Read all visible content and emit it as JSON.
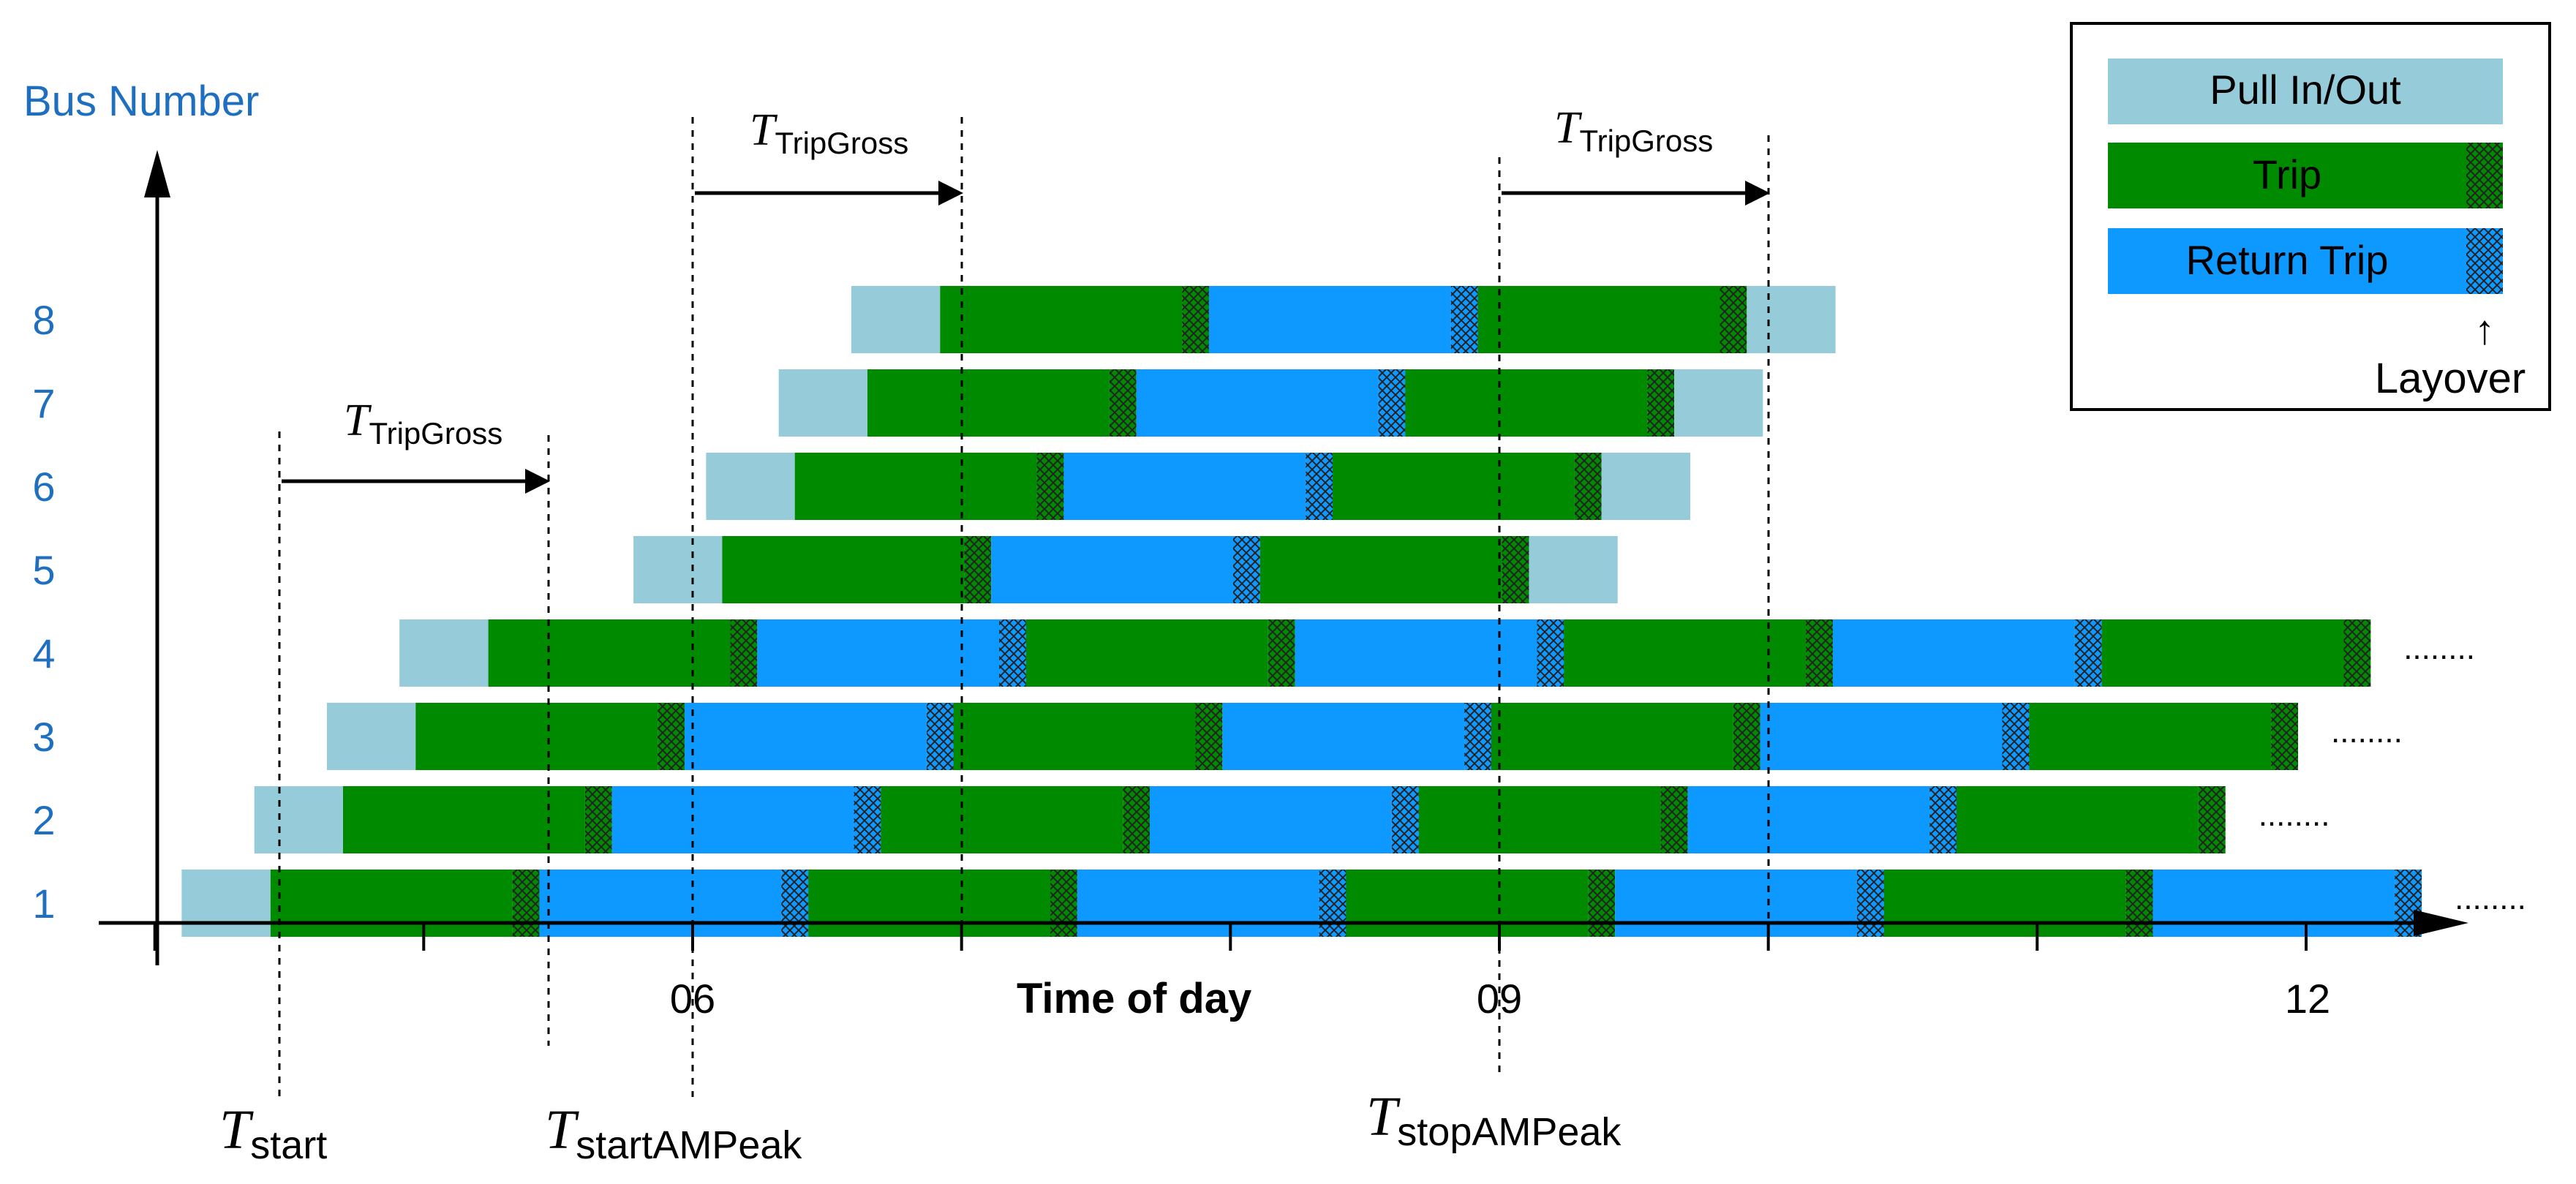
{
  "y_axis": {
    "label": "Bus Number",
    "ticks": [
      "1",
      "2",
      "3",
      "4",
      "5",
      "6",
      "7",
      "8"
    ]
  },
  "x_axis": {
    "label": "Time of day",
    "ticks": [
      "06",
      "09",
      "12"
    ]
  },
  "legend": {
    "items": [
      {
        "key": "pull",
        "label": "Pull In/Out"
      },
      {
        "key": "trip",
        "label": "Trip"
      },
      {
        "key": "return",
        "label": "Return Trip"
      }
    ],
    "note_arrow": "↑",
    "note": "Layover"
  },
  "colors": {
    "pull": "#96ccd9",
    "trip": "#008a00",
    "return": "#0d99ff",
    "axis_label": "#1f6fc1"
  },
  "time_markers": [
    {
      "name": "start",
      "base": "T",
      "sub": "start"
    },
    {
      "name": "start-am-peak",
      "base": "T",
      "sub": "startAMPeak"
    },
    {
      "name": "stop-am-peak",
      "base": "T",
      "sub": "stopAMPeak"
    }
  ],
  "gross_labels": [
    {
      "base": "T",
      "sub": "TripGross"
    },
    {
      "base": "T",
      "sub": "TripGross"
    },
    {
      "base": "T",
      "sub": "TripGross"
    }
  ],
  "continuation": "........",
  "schedule": {
    "pull_duration": 0.33,
    "trip_duration": 0.9,
    "layover_duration": 0.1,
    "buses": [
      {
        "bus": "1",
        "start_time": 4.1,
        "trips": 8,
        "pull_out_end": false,
        "continues": true
      },
      {
        "bus": "2",
        "start_time": 4.37,
        "trips": 7,
        "pull_out_end": false,
        "continues": true
      },
      {
        "bus": "3",
        "start_time": 4.64,
        "trips": 7,
        "pull_out_end": false,
        "continues": true
      },
      {
        "bus": "4",
        "start_time": 4.91,
        "trips": 7,
        "pull_out_end": false,
        "continues": true
      },
      {
        "bus": "5",
        "start_time": 5.78,
        "trips": 3,
        "pull_out_end": true,
        "continues": false
      },
      {
        "bus": "6",
        "start_time": 6.05,
        "trips": 3,
        "pull_out_end": true,
        "continues": false
      },
      {
        "bus": "7",
        "start_time": 6.32,
        "trips": 3,
        "pull_out_end": true,
        "continues": false
      },
      {
        "bus": "8",
        "start_time": 6.59,
        "trips": 3,
        "pull_out_end": true,
        "continues": false
      }
    ]
  }
}
